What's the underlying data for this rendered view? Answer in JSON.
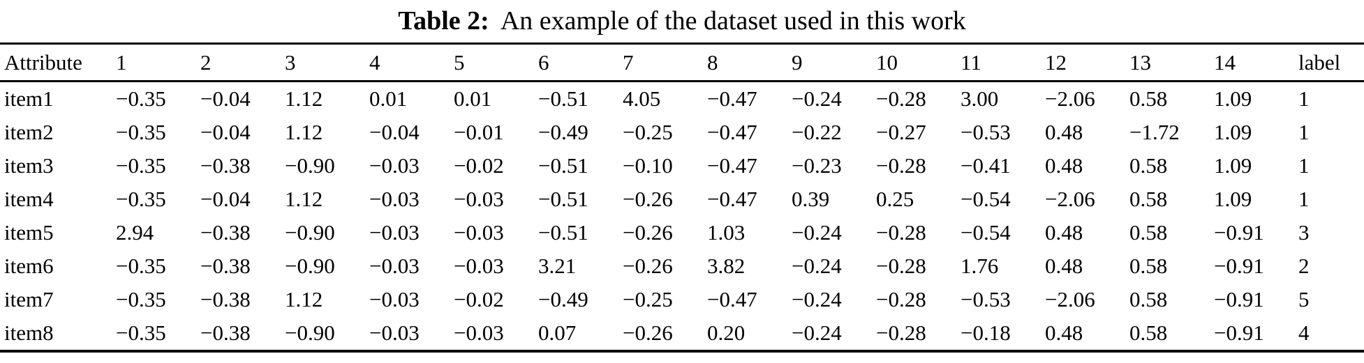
{
  "title": {
    "prefix": "Table 2:",
    "text": "An example of the dataset used in this work"
  },
  "table": {
    "columns": [
      "Attribute",
      "1",
      "2",
      "3",
      "4",
      "5",
      "6",
      "7",
      "8",
      "9",
      "10",
      "11",
      "12",
      "13",
      "14",
      "label"
    ],
    "rows": [
      {
        "name": "item1",
        "values": [
          "−0.35",
          "−0.04",
          "1.12",
          "0.01",
          "0.01",
          "−0.51",
          "4.05",
          "−0.47",
          "−0.24",
          "−0.28",
          "3.00",
          "−2.06",
          "0.58",
          "1.09"
        ],
        "label": "1"
      },
      {
        "name": "item2",
        "values": [
          "−0.35",
          "−0.04",
          "1.12",
          "−0.04",
          "−0.01",
          "−0.49",
          "−0.25",
          "−0.47",
          "−0.22",
          "−0.27",
          "−0.53",
          "0.48",
          "−1.72",
          "1.09"
        ],
        "label": "1"
      },
      {
        "name": "item3",
        "values": [
          "−0.35",
          "−0.38",
          "−0.90",
          "−0.03",
          "−0.02",
          "−0.51",
          "−0.10",
          "−0.47",
          "−0.23",
          "−0.28",
          "−0.41",
          "0.48",
          "0.58",
          "1.09"
        ],
        "label": "1"
      },
      {
        "name": "item4",
        "values": [
          "−0.35",
          "−0.04",
          "1.12",
          "−0.03",
          "−0.03",
          "−0.51",
          "−0.26",
          "−0.47",
          "0.39",
          "0.25",
          "−0.54",
          "−2.06",
          "0.58",
          "1.09"
        ],
        "label": "1"
      },
      {
        "name": "item5",
        "values": [
          "2.94",
          "−0.38",
          "−0.90",
          "−0.03",
          "−0.03",
          "−0.51",
          "−0.26",
          "1.03",
          "−0.24",
          "−0.28",
          "−0.54",
          "0.48",
          "0.58",
          "−0.91"
        ],
        "label": "3"
      },
      {
        "name": "item6",
        "values": [
          "−0.35",
          "−0.38",
          "−0.90",
          "−0.03",
          "−0.03",
          "3.21",
          "−0.26",
          "3.82",
          "−0.24",
          "−0.28",
          "1.76",
          "0.48",
          "0.58",
          "−0.91"
        ],
        "label": "2"
      },
      {
        "name": "item7",
        "values": [
          "−0.35",
          "−0.38",
          "1.12",
          "−0.03",
          "−0.02",
          "−0.49",
          "−0.25",
          "−0.47",
          "−0.24",
          "−0.28",
          "−0.53",
          "−2.06",
          "0.58",
          "−0.91"
        ],
        "label": "5"
      },
      {
        "name": "item8",
        "values": [
          "−0.35",
          "−0.38",
          "−0.90",
          "−0.03",
          "−0.03",
          "0.07",
          "−0.26",
          "0.20",
          "−0.24",
          "−0.28",
          "−0.18",
          "0.48",
          "0.58",
          "−0.91"
        ],
        "label": "4"
      }
    ]
  }
}
